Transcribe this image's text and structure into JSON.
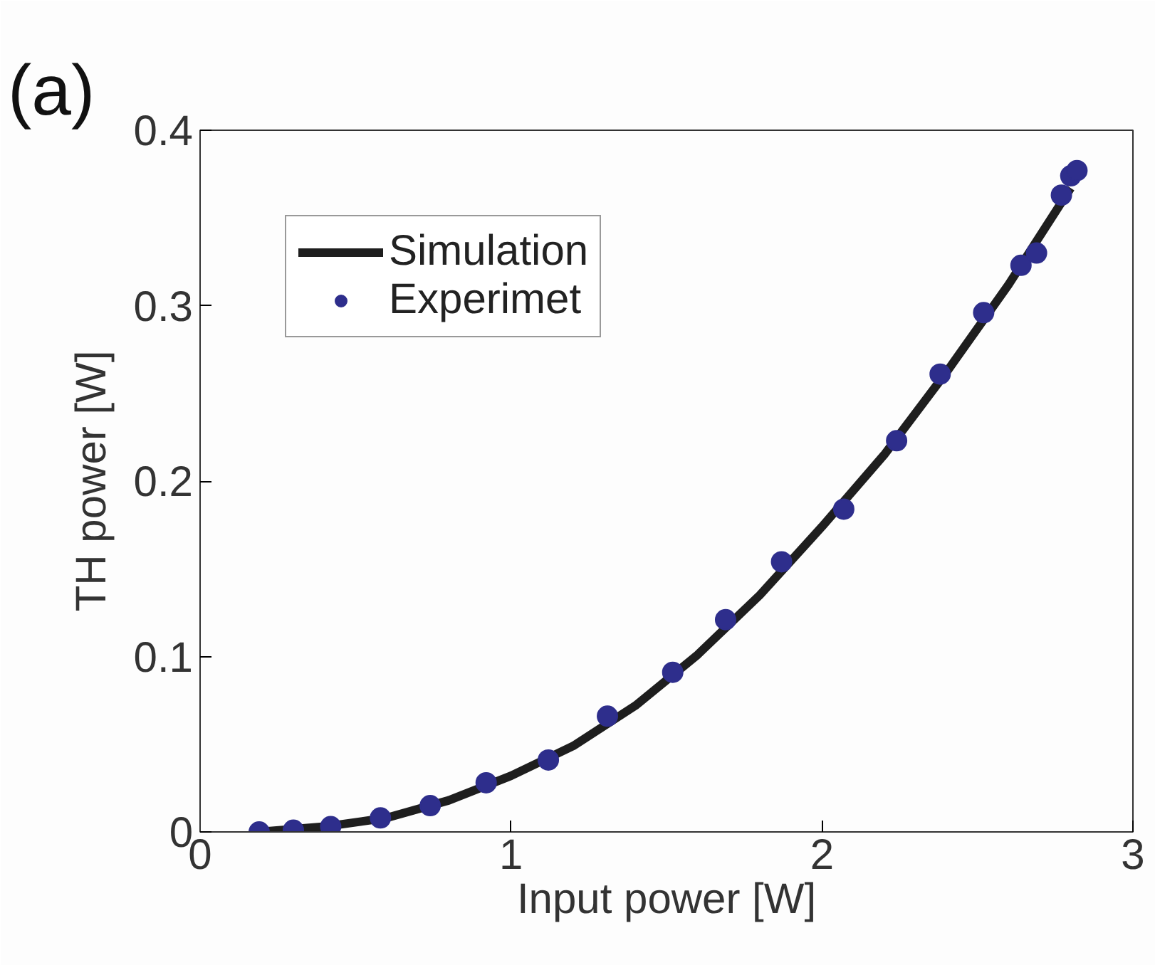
{
  "chart_data": {
    "type": "line",
    "xlabel": "Input power [W]",
    "ylabel": "TH power [W]",
    "annotations": [
      "(a)"
    ],
    "xlim": [
      0,
      3
    ],
    "xticks": [
      0,
      1,
      2,
      3
    ],
    "ylim": [
      0,
      0.4
    ],
    "yticks": [
      0,
      0.1,
      0.2,
      0.3,
      0.4
    ],
    "grid": false,
    "legend": "top left",
    "series": [
      {
        "name": "Simulation",
        "color": "#1e1e1e",
        "marker": "none",
        "line_style": "solid",
        "x": [
          0.19,
          0.4,
          0.6,
          0.8,
          1.0,
          1.2,
          1.4,
          1.6,
          1.8,
          2.0,
          2.2,
          2.4,
          2.6,
          2.8
        ],
        "values": [
          0,
          0.003,
          0.008,
          0.018,
          0.032,
          0.049,
          0.072,
          0.101,
          0.135,
          0.174,
          0.215,
          0.262,
          0.312,
          0.367
        ]
      },
      {
        "name": "Experimet",
        "type": "scatter",
        "color": "#2e2e8c",
        "marker": "circle",
        "x": [
          0.19,
          0.3,
          0.42,
          0.58,
          0.74,
          0.92,
          1.12,
          1.31,
          1.52,
          1.69,
          1.87,
          2.07,
          2.24,
          2.38,
          2.52,
          2.64,
          2.69,
          2.77,
          2.8,
          2.82
        ],
        "values": [
          0,
          0.001,
          0.003,
          0.008,
          0.015,
          0.028,
          0.041,
          0.066,
          0.091,
          0.121,
          0.154,
          0.184,
          0.223,
          0.261,
          0.296,
          0.323,
          0.33,
          0.363,
          0.374,
          0.377
        ]
      }
    ]
  }
}
